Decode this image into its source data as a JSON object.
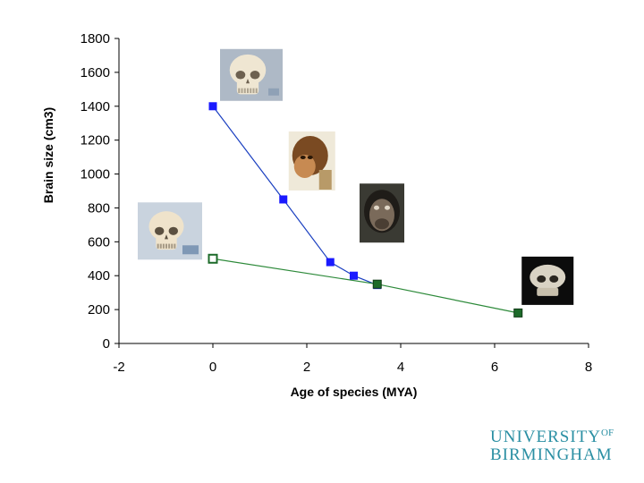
{
  "chart_data": {
    "type": "scatter",
    "title": "",
    "xlabel": "Age of species (MYA)",
    "ylabel": "Brain size (cm3)",
    "xlim": [
      -2,
      8
    ],
    "ylim": [
      0,
      1800
    ],
    "x_ticks": [
      -2,
      0,
      2,
      4,
      6,
      8
    ],
    "y_ticks": [
      0,
      200,
      400,
      600,
      800,
      1000,
      1200,
      1400,
      1600,
      1800
    ],
    "grid": false,
    "legend": "none",
    "series": [
      {
        "color": "#1a1aff",
        "line_color": "#1a3fc0",
        "marker": "square",
        "points": [
          {
            "x": 0,
            "y": 1400
          },
          {
            "x": 1.5,
            "y": 850
          },
          {
            "x": 2.5,
            "y": 480
          },
          {
            "x": 3,
            "y": 400
          },
          {
            "x": 3.5,
            "y": 345
          }
        ]
      },
      {
        "color": "#1d6b2a",
        "line_color": "#2d8a3a",
        "marker": "square",
        "points": [
          {
            "x": 0,
            "y": 500
          },
          {
            "x": 3.5,
            "y": 350
          },
          {
            "x": 6.5,
            "y": 180
          }
        ]
      }
    ],
    "images": [
      {
        "icon": "human-skull-photo",
        "at": {
          "x": 0,
          "y": 1400
        }
      },
      {
        "icon": "early-hominin-reconstruction-photo",
        "at": {
          "x": 1.5,
          "y": 850
        }
      },
      {
        "icon": "chimpanzee-face-photo",
        "at": {
          "x": 3.2,
          "y": 400
        }
      },
      {
        "icon": "chimpanzee-skull-photo",
        "at": {
          "x": 0,
          "y": 500
        }
      },
      {
        "icon": "monkey-skull-photo",
        "at": {
          "x": 6.5,
          "y": 180
        }
      }
    ]
  },
  "logo": {
    "line1": "UNIVERSITY",
    "line1_sup": "OF",
    "line2": "BIRMINGHAM",
    "color": "#2a8fa3"
  }
}
